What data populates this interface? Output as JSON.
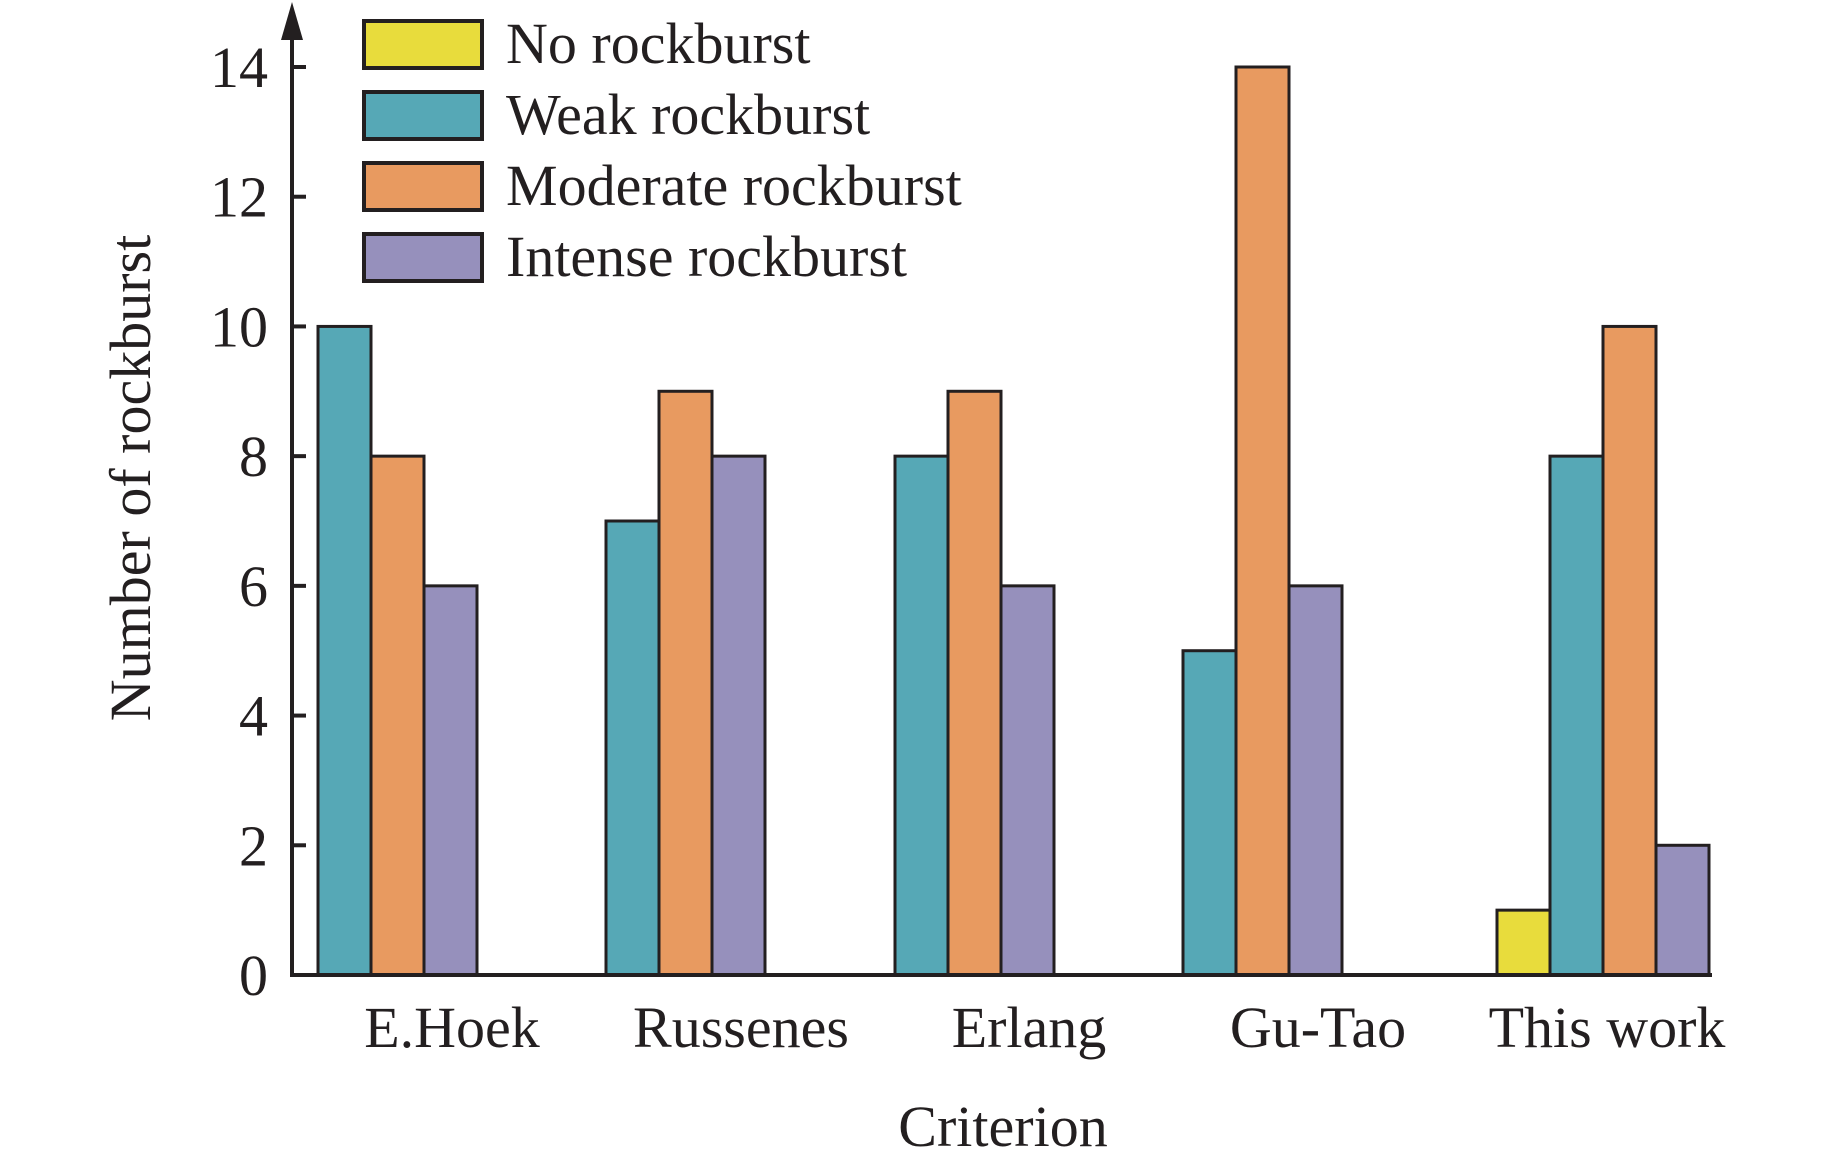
{
  "chart_data": {
    "type": "bar",
    "title": "",
    "xlabel": "Criterion",
    "ylabel": "Number of rockburst",
    "categories": [
      "E.Hoek",
      "Russenes",
      "Erlang",
      "Gu-Tao",
      "This work"
    ],
    "series": [
      {
        "name": "No rockburst",
        "color": "#e8dc3c",
        "values": [
          0,
          0,
          0,
          0,
          1
        ]
      },
      {
        "name": "Weak rockburst",
        "color": "#56a8b6",
        "values": [
          10,
          7,
          8,
          5,
          8
        ]
      },
      {
        "name": "Moderate rockburst",
        "color": "#e89a60",
        "values": [
          8,
          9,
          9,
          14,
          10
        ]
      },
      {
        "name": "Intense rockburst",
        "color": "#9690bc",
        "values": [
          6,
          8,
          6,
          6,
          2
        ]
      }
    ],
    "ylim": [
      0,
      14
    ],
    "yticks": [
      0,
      2,
      4,
      6,
      8,
      10,
      12,
      14
    ],
    "grid": false,
    "legend_position": "top-left"
  }
}
